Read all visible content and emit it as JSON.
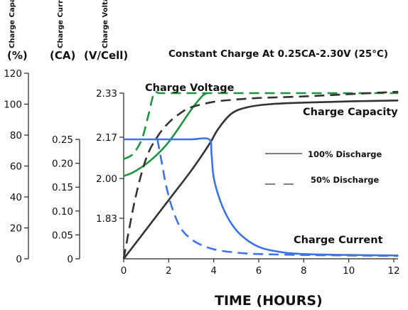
{
  "chart_data": {
    "type": "line",
    "title": "Constant Charge At 0.25CA-2.30V (25°C)",
    "xlabel": "TIME (HOURS)",
    "axes": {
      "capacity": {
        "label": "Charge Capacity",
        "unit": "(%)",
        "ylim": [
          0,
          120
        ],
        "ticks": [
          0,
          20,
          40,
          60,
          80,
          100,
          120
        ],
        "tick_labels": [
          "0",
          "20",
          "40",
          "60",
          "80",
          "100",
          "120"
        ]
      },
      "current": {
        "label": "Charge Current",
        "unit": "(CA)",
        "ylim": [
          0,
          0.25
        ],
        "ticks": [
          0,
          0.05,
          0.1,
          0.15,
          0.2,
          0.25
        ],
        "tick_labels": [
          "0",
          "0.05",
          "0.10",
          "0.15",
          "0.20",
          "0.25"
        ]
      },
      "voltage": {
        "label": "Charge Voltage",
        "unit": "(V/Cell)",
        "ticks": [
          1.83,
          2.0,
          2.17,
          2.33
        ],
        "tick_labels": [
          "1.83",
          "2.00",
          "2.17",
          "2.33"
        ]
      }
    },
    "x_ticks": [
      0,
      2,
      4,
      6,
      8,
      10,
      12
    ],
    "x_tick_labels": [
      "0",
      "2",
      "4",
      "6",
      "8",
      "10",
      "12"
    ],
    "xlim": [
      0,
      12
    ],
    "series": [
      {
        "name": "Charge Voltage",
        "discharge": "100% Discharge",
        "axis": "voltage",
        "color": "#1e9440",
        "dash": "solid",
        "x": [
          0,
          0.3,
          0.6,
          1.0,
          1.5,
          2.0,
          2.5,
          3.0,
          3.5,
          3.72
        ],
        "y": [
          2.01,
          2.02,
          2.035,
          2.06,
          2.1,
          2.15,
          2.21,
          2.27,
          2.32,
          2.33
        ]
      },
      {
        "name": "Charge Voltage",
        "discharge": "50% Discharge",
        "axis": "voltage",
        "color": "#1e9440",
        "dash": "dashed",
        "x": [
          0,
          0.4,
          0.8,
          1.1,
          1.35,
          1.6,
          2.5,
          4,
          6,
          8,
          10,
          12.2
        ],
        "y": [
          2.08,
          2.1,
          2.16,
          2.25,
          2.33,
          2.33,
          2.33,
          2.33,
          2.33,
          2.33,
          2.33,
          2.33
        ]
      },
      {
        "name": "Charge Capacity",
        "discharge": "100% Discharge",
        "axis": "capacity",
        "color": "#333333",
        "dash": "solid",
        "x": [
          0,
          1,
          2,
          3,
          3.8,
          4.2,
          4.8,
          5.5,
          6.5,
          8,
          10,
          12.2
        ],
        "y": [
          0,
          19,
          38,
          57,
          74,
          84,
          94,
          98,
          100,
          101,
          101.8,
          102.4
        ]
      },
      {
        "name": "Charge Capacity",
        "discharge": "50% Discharge",
        "axis": "capacity",
        "color": "#333333",
        "dash": "dashed",
        "x": [
          0,
          0.5,
          1,
          1.5,
          2,
          2.5,
          3,
          4,
          5,
          6,
          8,
          10,
          12.2
        ],
        "y": [
          0,
          38,
          65,
          79,
          88,
          94,
          98,
          101.5,
          103,
          104,
          105,
          106.5,
          108
        ]
      },
      {
        "name": "Charge Current",
        "discharge": "100% Discharge",
        "axis": "current",
        "color": "#3c73e6",
        "dash": "solid",
        "x": [
          0,
          1,
          2,
          3,
          3.8,
          3.9,
          4.0,
          4.3,
          4.7,
          5.2,
          6,
          7,
          8,
          10,
          12.2
        ],
        "y": [
          0.25,
          0.25,
          0.25,
          0.25,
          0.25,
          0.22,
          0.17,
          0.12,
          0.08,
          0.05,
          0.025,
          0.014,
          0.01,
          0.008,
          0.007
        ]
      },
      {
        "name": "Charge Current",
        "discharge": "50% Discharge",
        "axis": "current",
        "color": "#3c73e6",
        "dash": "dashed",
        "x": [
          1.5,
          1.7,
          1.9,
          2.2,
          2.6,
          3.2,
          4,
          5,
          6,
          8,
          10,
          12.2
        ],
        "y": [
          0.25,
          0.2,
          0.15,
          0.1,
          0.06,
          0.035,
          0.02,
          0.013,
          0.01,
          0.008,
          0.007,
          0.006
        ]
      }
    ],
    "curve_labels": [
      "Charge Voltage",
      "Charge Capacity",
      "Charge Current"
    ],
    "legend": {
      "solid": "100% Discharge",
      "dashed": "50% Discharge",
      "placement": "right, inside plot"
    },
    "grid": false
  }
}
